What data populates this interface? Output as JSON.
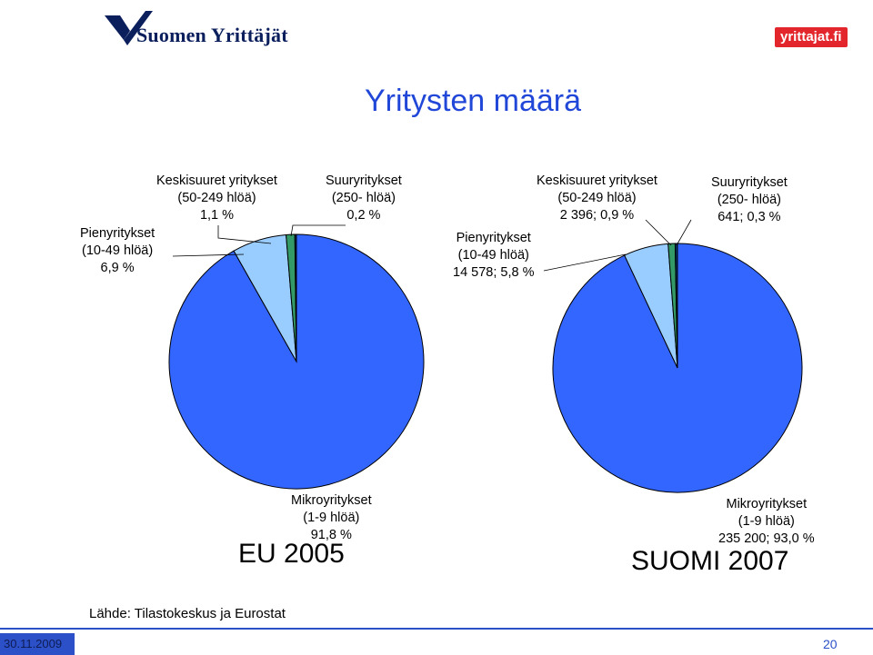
{
  "title": "Yritysten määrä",
  "logo_left": {
    "text": "Suomen Yrittäjät"
  },
  "logo_right": {
    "text": "yrittajat.fi"
  },
  "source": "Lähde: Tilastokeskus ja Eurostat",
  "footer": {
    "date": "30.11.2009",
    "page": "20"
  },
  "colors": {
    "micro": "#3366ff",
    "small": "#99ccff",
    "medium": "#339966",
    "large": "#003366",
    "title": "#2147d8"
  },
  "chart_data": [
    {
      "type": "pie",
      "caption": "EU 2005",
      "slices": [
        {
          "name": "Mikroyritykset",
          "value": 91.8,
          "lines": [
            "Mikroyritykset",
            "(1-9 hlöä)",
            "91,8 %"
          ]
        },
        {
          "name": "Pienyritykset",
          "value": 6.9,
          "lines": [
            "Pienyritykset",
            "(10-49 hlöä)",
            "6,9 %"
          ]
        },
        {
          "name": "Keskisuuret yritykset",
          "value": 1.1,
          "lines": [
            "Keskisuuret yritykset",
            "(50-249 hlöä)",
            "1,1 %"
          ]
        },
        {
          "name": "Suuryritykset",
          "value": 0.2,
          "lines": [
            "Suuryritykset",
            "(250- hlöä)",
            "0,2 %"
          ]
        }
      ]
    },
    {
      "type": "pie",
      "caption": "SUOMI 2007",
      "slices": [
        {
          "name": "Mikroyritykset",
          "count": 235200,
          "value": 93.0,
          "lines": [
            "Mikroyritykset",
            "(1-9 hlöä)",
            "235 200; 93,0 %"
          ]
        },
        {
          "name": "Pienyritykset",
          "count": 14578,
          "value": 5.8,
          "lines": [
            "Pienyritykset",
            "(10-49 hlöä)",
            "14 578; 5,8 %"
          ]
        },
        {
          "name": "Keskisuuret yritykset",
          "count": 2396,
          "value": 0.9,
          "lines": [
            "Keskisuuret yritykset",
            "(50-249 hlöä)",
            "2 396; 0,9 %"
          ]
        },
        {
          "name": "Suuryritykset",
          "count": 641,
          "value": 0.3,
          "lines": [
            "Suuryritykset",
            "(250- hlöä)",
            "641; 0,3 %"
          ]
        }
      ]
    }
  ]
}
